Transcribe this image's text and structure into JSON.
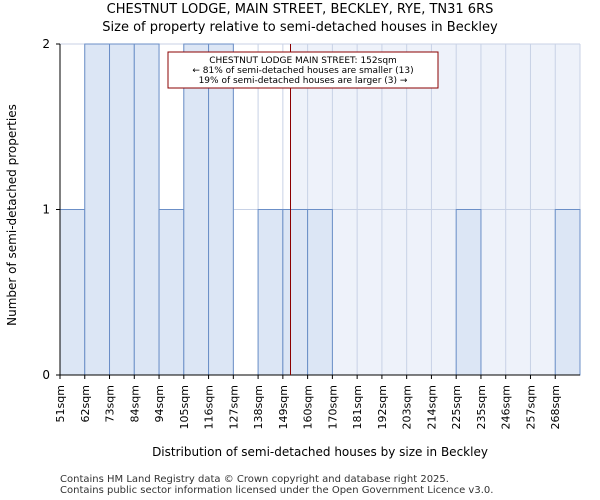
{
  "header": {
    "title": "CHESTNUT LODGE, MAIN STREET, BECKLEY, RYE, TN31 6RS",
    "subtitle": "Size of property relative to semi-detached houses in Beckley"
  },
  "footer": {
    "line1": "Contains HM Land Registry data © Crown copyright and database right 2025.",
    "line2": "Contains public sector information licensed under the Open Government Licence v3.0."
  },
  "chart_data": {
    "type": "bar",
    "title": "Size of property relative to semi-detached houses in Beckley",
    "xlabel": "Distribution of semi-detached houses by size in Beckley",
    "ylabel": "Number of semi-detached properties",
    "categories": [
      "51sqm",
      "62sqm",
      "73sqm",
      "84sqm",
      "94sqm",
      "105sqm",
      "116sqm",
      "127sqm",
      "138sqm",
      "149sqm",
      "160sqm",
      "170sqm",
      "181sqm",
      "192sqm",
      "203sqm",
      "214sqm",
      "225sqm",
      "235sqm",
      "246sqm",
      "257sqm",
      "268sqm"
    ],
    "values": [
      1,
      2,
      2,
      2,
      1,
      2,
      2,
      0,
      1,
      1,
      1,
      0,
      0,
      0,
      0,
      0,
      1,
      0,
      0,
      0,
      1
    ],
    "ylim": [
      0,
      2
    ],
    "yticks": [
      "0",
      "1",
      "2"
    ],
    "grid": true,
    "marker_value": 152,
    "annotation": {
      "line1": "CHESTNUT LODGE MAIN STREET: 152sqm",
      "line2": "← 81% of semi-detached houses are smaller (13)",
      "line3": "19% of semi-detached houses are larger (3) →"
    },
    "colors": {
      "bar_fill": "#dce6f5",
      "bar_stroke": "#6b8fc7",
      "right_shade": "#eef2fa",
      "grid": "#c8d2e6",
      "marker": "#8b0000"
    }
  }
}
